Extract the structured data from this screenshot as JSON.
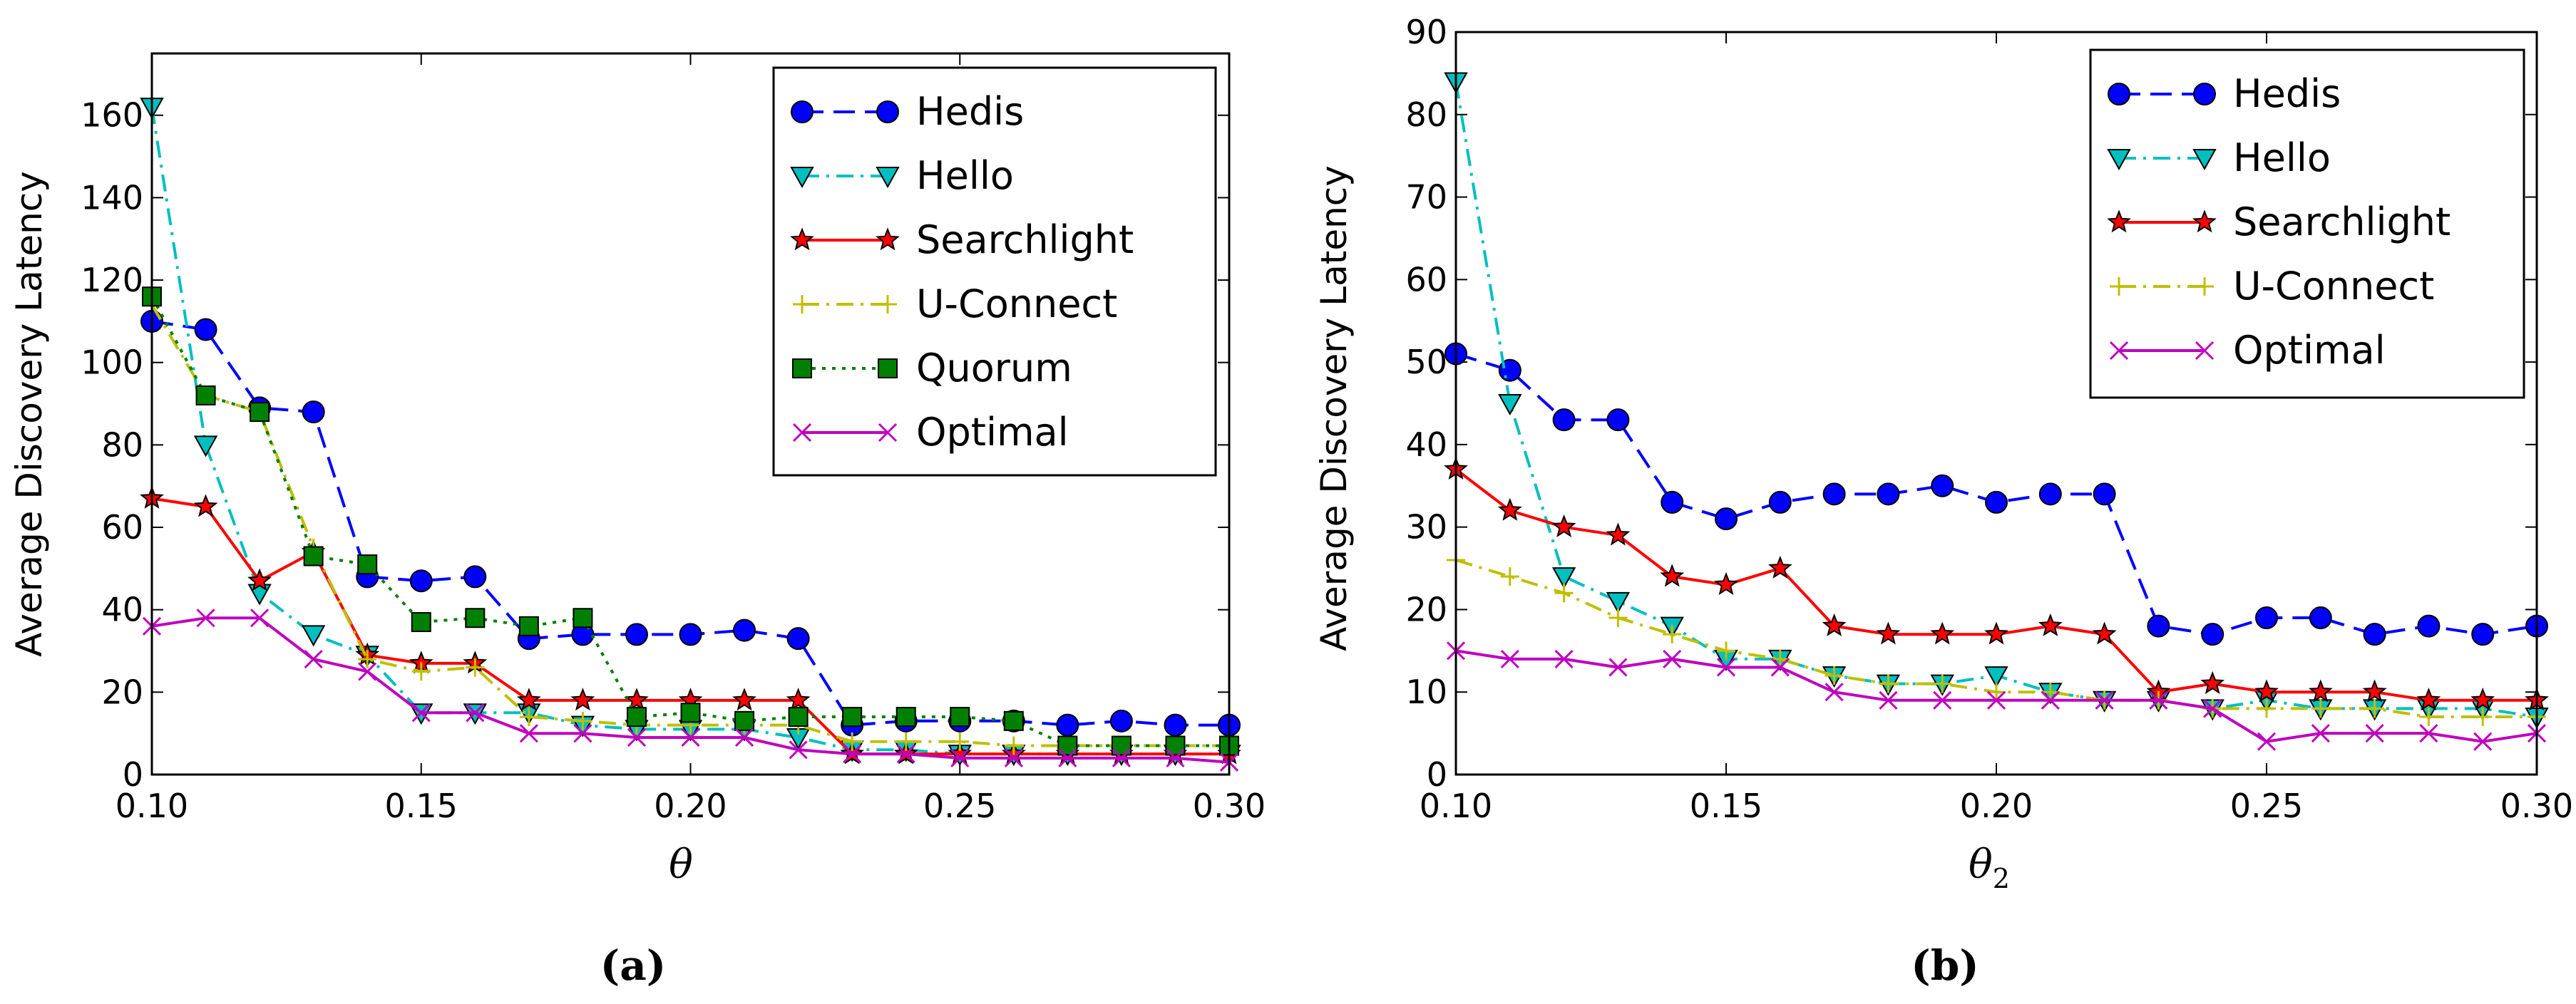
{
  "chart_data": [
    {
      "type": "line",
      "panel_label": "(a)",
      "xlabel": "θ",
      "ylabel": "Average Discovery Latency",
      "xlim": [
        0.1,
        0.3
      ],
      "ylim": [
        0,
        175
      ],
      "xticks": [
        0.1,
        0.15,
        0.2,
        0.25,
        0.3
      ],
      "xtick_labels": [
        "0.10",
        "0.15",
        "0.20",
        "0.25",
        "0.30"
      ],
      "yticks": [
        0,
        20,
        40,
        60,
        80,
        100,
        120,
        140,
        160
      ],
      "ytick_labels": [
        "0",
        "20",
        "40",
        "60",
        "80",
        "100",
        "120",
        "140",
        "160"
      ],
      "legend_position": "top-right",
      "x": [
        0.1,
        0.11,
        0.12,
        0.13,
        0.14,
        0.15,
        0.16,
        0.17,
        0.18,
        0.19,
        0.2,
        0.21,
        0.22,
        0.23,
        0.24,
        0.25,
        0.26,
        0.27,
        0.28,
        0.29,
        0.3
      ],
      "series": [
        {
          "name": "Hedis",
          "color": "#0000ff",
          "marker": "circle",
          "line": "dashed",
          "values": [
            110,
            108,
            89,
            88,
            48,
            47,
            48,
            33,
            34,
            34,
            34,
            35,
            33,
            12,
            13,
            13,
            13,
            12,
            13,
            12,
            12
          ]
        },
        {
          "name": "Hello",
          "color": "#00bfbf",
          "marker": "triangle-down",
          "line": "dashdot",
          "values": [
            162,
            80,
            44,
            34,
            29,
            15,
            15,
            15,
            12,
            11,
            11,
            11,
            9,
            6,
            6,
            5,
            5,
            5,
            5,
            5,
            5
          ]
        },
        {
          "name": "Searchlight",
          "color": "#ff0000",
          "marker": "star",
          "line": "solid",
          "values": [
            67,
            65,
            47,
            54,
            29,
            27,
            27,
            18,
            18,
            18,
            18,
            18,
            18,
            5,
            5,
            5,
            5,
            5,
            5,
            5,
            5
          ]
        },
        {
          "name": "U-Connect",
          "color": "#bfbf00",
          "marker": "plus",
          "line": "dashdot",
          "values": [
            114,
            92,
            88,
            55,
            28,
            25,
            26,
            14,
            13,
            12,
            12,
            12,
            12,
            8,
            8,
            8,
            7,
            7,
            7,
            7,
            7
          ]
        },
        {
          "name": "Quorum",
          "color": "#008000",
          "marker": "square",
          "line": "dotted",
          "values": [
            116,
            92,
            88,
            53,
            51,
            37,
            38,
            36,
            38,
            14,
            15,
            13,
            14,
            14,
            14,
            14,
            13,
            7,
            7,
            7,
            7
          ]
        },
        {
          "name": "Optimal",
          "color": "#bf00bf",
          "marker": "x",
          "line": "solid",
          "values": [
            36,
            38,
            38,
            28,
            25,
            15,
            15,
            10,
            10,
            9,
            9,
            9,
            6,
            5,
            5,
            4,
            4,
            4,
            4,
            4,
            3
          ]
        }
      ]
    },
    {
      "type": "line",
      "panel_label": "(b)",
      "xlabel": "θ",
      "xlabel_subscript": "2",
      "ylabel": "Average Discovery Latency",
      "xlim": [
        0.1,
        0.3
      ],
      "ylim": [
        0,
        90
      ],
      "xticks": [
        0.1,
        0.15,
        0.2,
        0.25,
        0.3
      ],
      "xtick_labels": [
        "0.10",
        "0.15",
        "0.20",
        "0.25",
        "0.30"
      ],
      "yticks": [
        0,
        10,
        20,
        30,
        40,
        50,
        60,
        70,
        80,
        90
      ],
      "ytick_labels": [
        "0",
        "10",
        "20",
        "30",
        "40",
        "50",
        "60",
        "70",
        "80",
        "90"
      ],
      "legend_position": "top-right",
      "x": [
        0.1,
        0.11,
        0.12,
        0.13,
        0.14,
        0.15,
        0.16,
        0.17,
        0.18,
        0.19,
        0.2,
        0.21,
        0.22,
        0.23,
        0.24,
        0.25,
        0.26,
        0.27,
        0.28,
        0.29,
        0.3
      ],
      "series": [
        {
          "name": "Hedis",
          "color": "#0000ff",
          "marker": "circle",
          "line": "dashed",
          "values": [
            51,
            49,
            43,
            43,
            33,
            31,
            33,
            34,
            34,
            35,
            33,
            34,
            34,
            18,
            17,
            19,
            19,
            17,
            18,
            17,
            18
          ]
        },
        {
          "name": "Hello",
          "color": "#00bfbf",
          "marker": "triangle-down",
          "line": "dashdot",
          "values": [
            84,
            45,
            24,
            21,
            18,
            14,
            14,
            12,
            11,
            11,
            12,
            10,
            9,
            9,
            8,
            9,
            8,
            8,
            8,
            8,
            7
          ]
        },
        {
          "name": "Searchlight",
          "color": "#ff0000",
          "marker": "star",
          "line": "solid",
          "values": [
            37,
            32,
            30,
            29,
            24,
            23,
            25,
            18,
            17,
            17,
            17,
            18,
            17,
            10,
            11,
            10,
            10,
            10,
            9,
            9,
            9
          ]
        },
        {
          "name": "U-Connect",
          "color": "#bfbf00",
          "marker": "plus",
          "line": "dashdot",
          "values": [
            26,
            24,
            22,
            19,
            17,
            15,
            14,
            12,
            11,
            11,
            10,
            10,
            9,
            9,
            8,
            8,
            8,
            8,
            7,
            7,
            7
          ]
        },
        {
          "name": "Optimal",
          "color": "#bf00bf",
          "marker": "x",
          "line": "solid",
          "values": [
            15,
            14,
            14,
            13,
            14,
            13,
            13,
            10,
            9,
            9,
            9,
            9,
            9,
            9,
            8,
            4,
            5,
            5,
            5,
            4,
            5
          ]
        }
      ]
    }
  ]
}
